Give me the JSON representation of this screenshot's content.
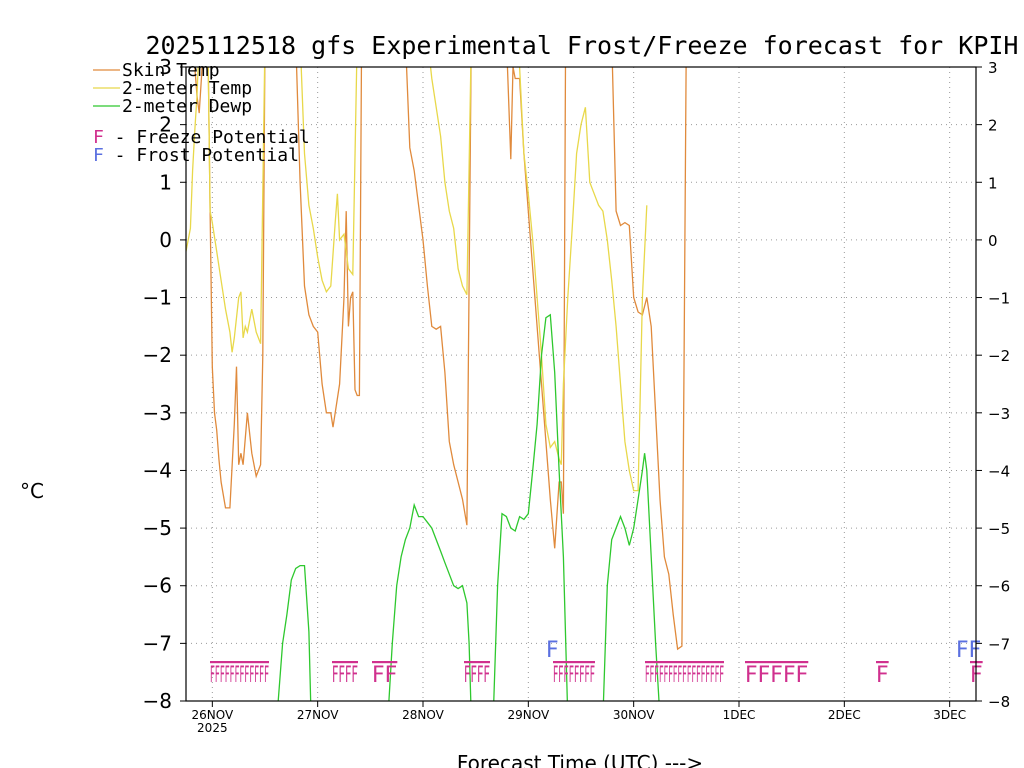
{
  "chart_data": {
    "type": "line",
    "title": "2025112518 gfs Experimental Frost/Freeze forecast for KPIH",
    "ylabel": "°C",
    "xlabel": "Forecast Time (UTC) --->",
    "ylim": [
      -8,
      3
    ],
    "yticks": [
      3,
      2,
      1,
      0,
      -1,
      -2,
      -3,
      -4,
      -5,
      -6,
      -7,
      -8
    ],
    "ytick_labels": [
      "3",
      "2",
      "1",
      "0",
      "−1",
      "−2",
      "−3",
      "−4",
      "−5",
      "−6",
      "−7",
      "−8"
    ],
    "xlim_hours": [
      -6,
      174
    ],
    "xticks": [
      {
        "label": "26NOV",
        "label2": "2025",
        "hour": 0
      },
      {
        "label": "27NOV",
        "hour": 24
      },
      {
        "label": "28NOV",
        "hour": 48
      },
      {
        "label": "29NOV",
        "hour": 72
      },
      {
        "label": "30NOV",
        "hour": 96
      },
      {
        "label": "1DEC",
        "hour": 120
      },
      {
        "label": "2DEC",
        "hour": 144
      },
      {
        "label": "3DEC",
        "hour": 168
      }
    ],
    "legend": [
      {
        "name": "Skin Temp",
        "color": "#e08a3c"
      },
      {
        "name": "2-meter Temp",
        "color": "#e8d84a"
      },
      {
        "name": "2-meter Dewp",
        "color": "#2ec82e"
      }
    ],
    "flag_legend": [
      {
        "symbol": "F",
        "text": " - Freeze Potential",
        "color": "#d0308e"
      },
      {
        "symbol": "F",
        "text": " - Frost Potential",
        "color": "#5a6fe0"
      }
    ],
    "series": [
      {
        "name": "Skin Temp",
        "color": "#e08a3c",
        "points": [
          [
            -5,
            3.5
          ],
          [
            -4.5,
            3.5
          ],
          [
            -4,
            3.0
          ],
          [
            -3.5,
            2.5
          ],
          [
            -3,
            2.2
          ],
          [
            -2.5,
            2.8
          ],
          [
            -2,
            3.5
          ],
          [
            -1,
            3.5
          ],
          [
            -0.5,
            0.5
          ],
          [
            0,
            -2.2
          ],
          [
            0.5,
            -3.0
          ],
          [
            1,
            -3.3
          ],
          [
            1.5,
            -3.8
          ],
          [
            2,
            -4.2
          ],
          [
            3,
            -4.65
          ],
          [
            4,
            -4.65
          ],
          [
            5,
            -3.2
          ],
          [
            5.5,
            -2.2
          ],
          [
            6,
            -3.9
          ],
          [
            6.5,
            -3.7
          ],
          [
            7,
            -3.9
          ],
          [
            8,
            -3.0
          ],
          [
            9,
            -3.7
          ],
          [
            10,
            -4.1
          ],
          [
            11,
            -3.9
          ],
          [
            11.5,
            -2.0
          ],
          [
            12,
            3.5
          ],
          [
            19,
            3.5
          ],
          [
            20,
            1.0
          ],
          [
            21,
            -0.8
          ],
          [
            22,
            -1.3
          ],
          [
            23,
            -1.5
          ],
          [
            24,
            -1.6
          ],
          [
            25,
            -2.5
          ],
          [
            26,
            -3.0
          ],
          [
            27,
            -3.0
          ],
          [
            27.5,
            -3.25
          ],
          [
            28,
            -3.0
          ],
          [
            29,
            -2.5
          ],
          [
            30,
            -1.0
          ],
          [
            30.5,
            0.5
          ],
          [
            31,
            -1.5
          ],
          [
            31.5,
            -1.0
          ],
          [
            32,
            -0.9
          ],
          [
            32.5,
            -2.6
          ],
          [
            33,
            -2.7
          ],
          [
            33.5,
            -2.7
          ],
          [
            34,
            3.5
          ],
          [
            44,
            3.5
          ],
          [
            45,
            1.6
          ],
          [
            46,
            1.2
          ],
          [
            47,
            0.6
          ],
          [
            48,
            0.0
          ],
          [
            49,
            -0.8
          ],
          [
            50,
            -1.5
          ],
          [
            51,
            -1.55
          ],
          [
            52,
            -1.5
          ],
          [
            53,
            -2.3
          ],
          [
            54,
            -3.5
          ],
          [
            55,
            -3.9
          ],
          [
            56,
            -4.2
          ],
          [
            57,
            -4.5
          ],
          [
            58,
            -4.95
          ],
          [
            59,
            3.5
          ],
          [
            67,
            3.5
          ],
          [
            68,
            1.4
          ],
          [
            68.5,
            3.0
          ],
          [
            69,
            2.8
          ],
          [
            70,
            2.8
          ],
          [
            71,
            1.5
          ],
          [
            72,
            0.5
          ],
          [
            73,
            -0.5
          ],
          [
            74,
            -1.5
          ],
          [
            75,
            -2.5
          ],
          [
            76,
            -3.5
          ],
          [
            77,
            -4.5
          ],
          [
            78,
            -5.35
          ],
          [
            79,
            -4.2
          ],
          [
            79.5,
            -4.2
          ],
          [
            80,
            -4.75
          ],
          [
            80.5,
            3.5
          ],
          [
            91,
            3.5
          ],
          [
            92,
            0.5
          ],
          [
            93,
            0.25
          ],
          [
            94,
            0.3
          ],
          [
            95,
            0.25
          ],
          [
            96,
            -1.0
          ],
          [
            97,
            -1.25
          ],
          [
            98,
            -1.3
          ],
          [
            99,
            -1.0
          ],
          [
            100,
            -1.5
          ],
          [
            101,
            -3.0
          ],
          [
            102,
            -4.5
          ],
          [
            103,
            -5.5
          ],
          [
            104,
            -5.8
          ],
          [
            105,
            -6.5
          ],
          [
            106,
            -7.1
          ],
          [
            107,
            -7.05
          ],
          [
            107.5,
            -2.0
          ],
          [
            108,
            3.5
          ],
          [
            109,
            3.5
          ]
        ]
      },
      {
        "name": "2-meter Temp",
        "color": "#e8d84a",
        "points": [
          [
            -6,
            -0.2
          ],
          [
            -5,
            0.2
          ],
          [
            -4.5,
            1.2
          ],
          [
            -4,
            1.9
          ],
          [
            -3.5,
            2.5
          ],
          [
            -3,
            3.5
          ],
          [
            -1,
            3.5
          ],
          [
            -0.5,
            0.5
          ],
          [
            0,
            0.3
          ],
          [
            1,
            -0.2
          ],
          [
            2,
            -0.7
          ],
          [
            3,
            -1.2
          ],
          [
            4,
            -1.6
          ],
          [
            4.5,
            -1.95
          ],
          [
            5,
            -1.7
          ],
          [
            6,
            -1.0
          ],
          [
            6.5,
            -0.9
          ],
          [
            7,
            -1.7
          ],
          [
            7.5,
            -1.5
          ],
          [
            8,
            -1.6
          ],
          [
            9,
            -1.2
          ],
          [
            10,
            -1.6
          ],
          [
            11,
            -1.8
          ],
          [
            12,
            3.5
          ],
          [
            20,
            3.5
          ],
          [
            21,
            1.5
          ],
          [
            22,
            0.6
          ],
          [
            23,
            0.2
          ],
          [
            24,
            -0.3
          ],
          [
            25,
            -0.7
          ],
          [
            26,
            -0.9
          ],
          [
            27,
            -0.8
          ],
          [
            28,
            0.3
          ],
          [
            28.5,
            0.8
          ],
          [
            29,
            0.0
          ],
          [
            30,
            0.1
          ],
          [
            31,
            -0.5
          ],
          [
            32,
            -0.6
          ],
          [
            33,
            3.5
          ],
          [
            49,
            3.5
          ],
          [
            50,
            2.8
          ],
          [
            51,
            2.3
          ],
          [
            52,
            1.8
          ],
          [
            53,
            1.0
          ],
          [
            54,
            0.5
          ],
          [
            55,
            0.2
          ],
          [
            56,
            -0.5
          ],
          [
            57,
            -0.8
          ],
          [
            58,
            -0.95
          ],
          [
            59,
            3.5
          ],
          [
            69,
            3.5
          ],
          [
            70,
            3.0
          ],
          [
            71,
            1.5
          ],
          [
            72,
            0.8
          ],
          [
            73,
            0.0
          ],
          [
            74,
            -1.0
          ],
          [
            75,
            -2.0
          ],
          [
            76,
            -3.2
          ],
          [
            77,
            -3.6
          ],
          [
            78,
            -3.5
          ],
          [
            79,
            -3.8
          ],
          [
            79.5,
            -3.9
          ],
          [
            80,
            -2.5
          ],
          [
            81,
            -1.0
          ],
          [
            82,
            0.2
          ],
          [
            83,
            1.5
          ],
          [
            84,
            2.0
          ],
          [
            85,
            2.3
          ],
          [
            86,
            1.0
          ],
          [
            87,
            0.8
          ],
          [
            88,
            0.6
          ],
          [
            89,
            0.5
          ],
          [
            90,
            0.0
          ],
          [
            91,
            -0.7
          ],
          [
            92,
            -1.5
          ],
          [
            93,
            -2.5
          ],
          [
            94,
            -3.5
          ],
          [
            95,
            -4.0
          ],
          [
            96,
            -4.35
          ],
          [
            97,
            -4.35
          ],
          [
            98,
            -1.0
          ],
          [
            99,
            0.6
          ]
        ]
      },
      {
        "name": "2-meter Dewp",
        "color": "#2ec82e",
        "points": [
          [
            14.5,
            -8.3
          ],
          [
            15,
            -8.0
          ],
          [
            16,
            -7.0
          ],
          [
            17,
            -6.5
          ],
          [
            18,
            -5.9
          ],
          [
            19,
            -5.7
          ],
          [
            20,
            -5.65
          ],
          [
            21,
            -5.65
          ],
          [
            22,
            -6.8
          ],
          [
            22.5,
            -8.3
          ],
          [
            40,
            -8.3
          ],
          [
            41,
            -7.0
          ],
          [
            42,
            -6.0
          ],
          [
            43,
            -5.5
          ],
          [
            44,
            -5.2
          ],
          [
            45,
            -5.0
          ],
          [
            46,
            -4.6
          ],
          [
            47,
            -4.8
          ],
          [
            48,
            -4.8
          ],
          [
            49,
            -4.9
          ],
          [
            50,
            -5.0
          ],
          [
            51,
            -5.2
          ],
          [
            52,
            -5.4
          ],
          [
            53,
            -5.6
          ],
          [
            54,
            -5.8
          ],
          [
            55,
            -6.0
          ],
          [
            56,
            -6.05
          ],
          [
            57,
            -6.0
          ],
          [
            58,
            -6.3
          ],
          [
            58.5,
            -7.0
          ],
          [
            59,
            -8.3
          ],
          [
            64,
            -8.3
          ],
          [
            65,
            -6.0
          ],
          [
            66,
            -4.75
          ],
          [
            67,
            -4.8
          ],
          [
            68,
            -5.0
          ],
          [
            69,
            -5.05
          ],
          [
            70,
            -4.8
          ],
          [
            71,
            -4.85
          ],
          [
            72,
            -4.75
          ],
          [
            73,
            -4.0
          ],
          [
            74,
            -3.2
          ],
          [
            75,
            -2.0
          ],
          [
            76,
            -1.35
          ],
          [
            77,
            -1.3
          ],
          [
            78,
            -2.3
          ],
          [
            79,
            -4.0
          ],
          [
            80,
            -5.5
          ],
          [
            81,
            -8.3
          ],
          [
            89,
            -8.3
          ],
          [
            90,
            -6.0
          ],
          [
            91,
            -5.2
          ],
          [
            92,
            -5.0
          ],
          [
            93,
            -4.8
          ],
          [
            94,
            -5.0
          ],
          [
            95,
            -5.3
          ],
          [
            96,
            -5.0
          ],
          [
            97,
            -4.5
          ],
          [
            98,
            -4.0
          ],
          [
            98.5,
            -3.7
          ],
          [
            99,
            -4.0
          ],
          [
            100,
            -5.5
          ],
          [
            101,
            -7.0
          ],
          [
            102,
            -8.3
          ]
        ]
      }
    ],
    "freeze_flags": [
      "FFFFFFFFFFFF",
      "FFFF",
      "FF",
      "FFFF",
      "FFFFFFFF",
      "FFFFFFFFFFFFFFFFF",
      "FFFFF",
      "F",
      "F"
    ],
    "frost_flags": [
      "F",
      "FF"
    ]
  }
}
